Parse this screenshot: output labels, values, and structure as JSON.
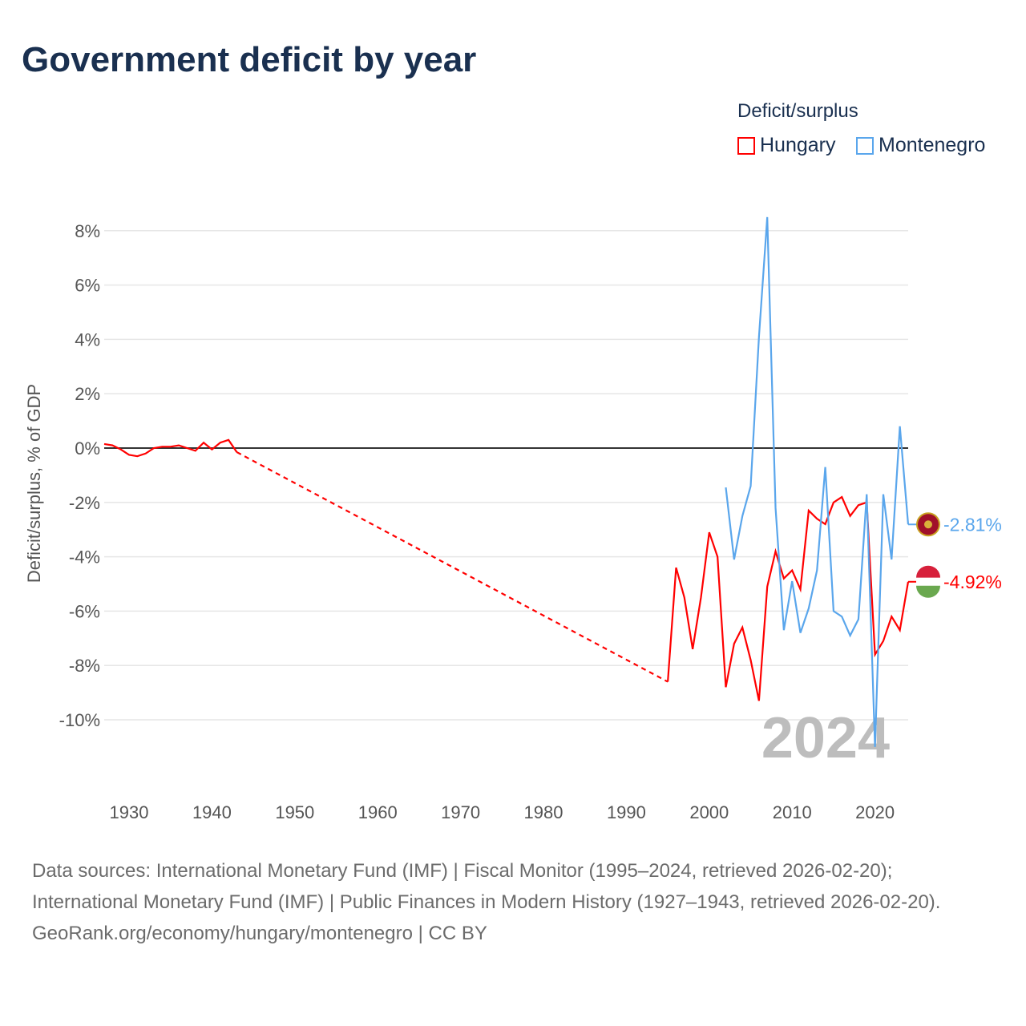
{
  "title": "Government deficit by year",
  "legend": {
    "title": "Deficit/surplus",
    "items": [
      {
        "name": "Hungary",
        "color": "#ff0000"
      },
      {
        "name": "Montenegro",
        "color": "#5aa6ec"
      }
    ]
  },
  "chart_data": {
    "type": "line",
    "title": "Government deficit by year",
    "ylabel": "Deficit/surplus, % of GDP",
    "xlabel": "",
    "ylim": [
      -12,
      8.8
    ],
    "xlim": [
      1927,
      2024
    ],
    "yticks": [
      8,
      6,
      4,
      2,
      0,
      -2,
      -4,
      -6,
      -8,
      -10
    ],
    "ytick_labels": [
      "8%",
      "6%",
      "4%",
      "2%",
      "0%",
      "-2%",
      "-4%",
      "-6%",
      "-8%",
      "-10%"
    ],
    "xticks": [
      1930,
      1940,
      1950,
      1960,
      1970,
      1980,
      1990,
      2000,
      2010,
      2020
    ],
    "year_label": "2024",
    "series": [
      {
        "name": "Hungary",
        "color": "#ff0000",
        "end_label": "-4.92%",
        "x": [
          1927,
          1928,
          1929,
          1930,
          1931,
          1932,
          1933,
          1934,
          1935,
          1936,
          1937,
          1938,
          1939,
          1940,
          1941,
          1942,
          1943,
          1995,
          1996,
          1997,
          1998,
          1999,
          2000,
          2001,
          2002,
          2003,
          2004,
          2005,
          2006,
          2007,
          2008,
          2009,
          2010,
          2011,
          2012,
          2013,
          2014,
          2015,
          2016,
          2017,
          2018,
          2019,
          2020,
          2021,
          2022,
          2023,
          2024
        ],
        "y": [
          0.15,
          0.1,
          -0.05,
          -0.25,
          -0.3,
          -0.2,
          0,
          0.05,
          0.05,
          0.1,
          0,
          -0.1,
          0.2,
          -0.05,
          0.2,
          0.3,
          -0.15,
          -8.6,
          -4.4,
          -5.5,
          -7.4,
          -5.5,
          -3.1,
          -4.0,
          -8.8,
          -7.2,
          -6.6,
          -7.8,
          -9.3,
          -5.1,
          -3.8,
          -4.8,
          -4.5,
          -5.2,
          -2.3,
          -2.6,
          -2.8,
          -2.0,
          -1.8,
          -2.5,
          -2.1,
          -2.0,
          -7.6,
          -7.1,
          -6.2,
          -6.7,
          -4.92
        ],
        "gap": [
          1943,
          1995
        ]
      },
      {
        "name": "Montenegro",
        "color": "#5aa6ec",
        "end_label": "-2.81%",
        "x": [
          2002,
          2003,
          2004,
          2005,
          2006,
          2007,
          2008,
          2009,
          2010,
          2011,
          2012,
          2013,
          2014,
          2015,
          2016,
          2017,
          2018,
          2019,
          2020,
          2021,
          2022,
          2023,
          2024
        ],
        "y": [
          -1.45,
          -4.1,
          -2.5,
          -1.4,
          4.1,
          8.5,
          -2.2,
          -6.7,
          -4.9,
          -6.8,
          -5.9,
          -4.5,
          -0.7,
          -6.0,
          -6.2,
          -6.9,
          -6.3,
          -1.7,
          -11.0,
          -1.7,
          -4.1,
          0.8,
          -2.81
        ]
      }
    ]
  },
  "sources": {
    "line1": "Data sources: International Monetary Fund (IMF) | Fiscal Monitor (1995–2024, retrieved 2026-02-20); International Monetary Fund (IMF) | Public Finances in Modern History (1927–1943, retrieved 2026-02-20).",
    "line2": "GeoRank.org/economy/hungary/montenegro | CC BY"
  }
}
